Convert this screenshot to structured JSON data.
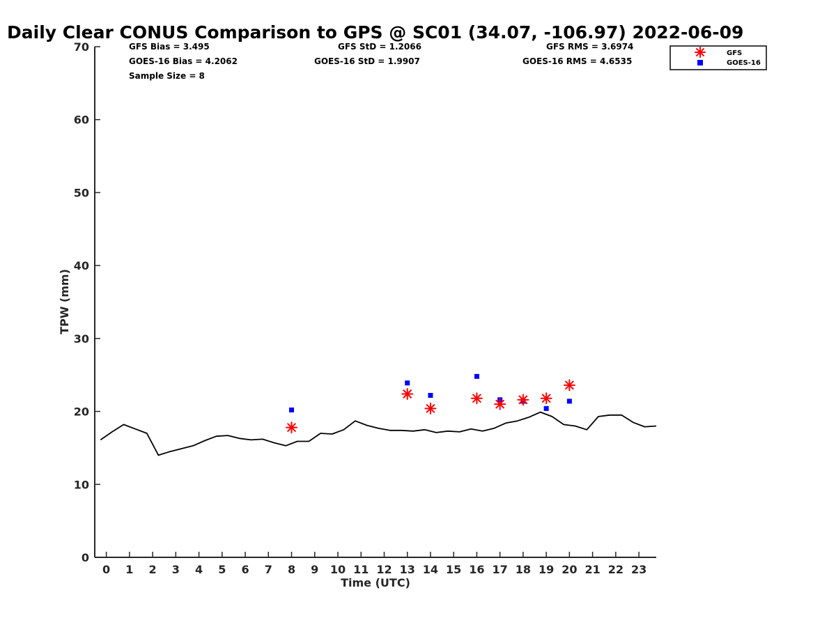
{
  "chart_data": {
    "type": "scatter",
    "title": "Daily Clear CONUS Comparison to GPS @ SC01 (34.07, -106.97) 2022-06-09",
    "xlabel": "Time (UTC)",
    "ylabel": "TPW (mm)",
    "xlim": [
      -0.5,
      23.75
    ],
    "ylim": [
      0,
      70
    ],
    "xticks": [
      0,
      1,
      2,
      3,
      4,
      5,
      6,
      7,
      8,
      9,
      10,
      11,
      12,
      13,
      14,
      15,
      16,
      17,
      18,
      19,
      20,
      21,
      22,
      23
    ],
    "yticks": [
      0,
      10,
      20,
      30,
      40,
      50,
      60,
      70
    ],
    "grid": false,
    "legend_position": "top-right, outside plot",
    "stats": {
      "gfs_bias": "GFS Bias = 3.495",
      "goes_bias": "GOES-16 Bias = 4.2062",
      "sample_size": "Sample Size = 8",
      "gfs_std": "GFS StD = 1.2066",
      "goes_std": "GOES-16 StD = 1.9907",
      "gfs_rms": "GFS RMS = 3.6974",
      "goes_rms": "GOES-16 RMS = 4.6535"
    },
    "series": [
      {
        "name": "GPS",
        "kind": "line",
        "color": "#000000",
        "x": [
          -0.25,
          0.25,
          0.75,
          1.25,
          1.75,
          2.25,
          2.75,
          3.25,
          3.75,
          4.25,
          4.75,
          5.25,
          5.75,
          6.25,
          6.75,
          7.25,
          7.75,
          8.25,
          8.75,
          9.25,
          9.75,
          10.25,
          10.75,
          11.25,
          11.75,
          12.25,
          12.75,
          13.25,
          13.75,
          14.25,
          14.75,
          15.25,
          15.75,
          16.25,
          16.75,
          17.25,
          17.75,
          18.25,
          18.75,
          19.25,
          19.75,
          20.25,
          20.75,
          21.25,
          21.75,
          22.25,
          22.75,
          23.25,
          23.75
        ],
        "values": [
          16.1,
          17.2,
          18.2,
          17.6,
          17.0,
          14.0,
          14.5,
          14.9,
          15.3,
          16.0,
          16.6,
          16.7,
          16.3,
          16.1,
          16.2,
          15.7,
          15.3,
          15.9,
          15.9,
          17.0,
          16.9,
          17.5,
          18.7,
          18.1,
          17.7,
          17.4,
          17.4,
          17.3,
          17.5,
          17.1,
          17.3,
          17.2,
          17.6,
          17.3,
          17.7,
          18.4,
          18.7,
          19.2,
          19.9,
          19.3,
          18.2,
          18.0,
          17.5,
          19.3,
          19.5,
          19.5,
          18.5,
          17.9,
          18.0
        ]
      },
      {
        "name": "GFS",
        "kind": "asterisk",
        "color": "#ff0000",
        "x": [
          8,
          13,
          14,
          16,
          17,
          18,
          19,
          20
        ],
        "values": [
          17.8,
          22.4,
          20.4,
          21.8,
          21.0,
          21.6,
          21.8,
          23.6
        ]
      },
      {
        "name": "GOES-16",
        "kind": "square",
        "color": "#0000ff",
        "x": [
          8,
          13,
          14,
          16,
          17,
          18,
          19,
          20
        ],
        "values": [
          20.2,
          23.9,
          22.2,
          24.8,
          21.6,
          21.4,
          20.4,
          21.4
        ]
      }
    ]
  }
}
